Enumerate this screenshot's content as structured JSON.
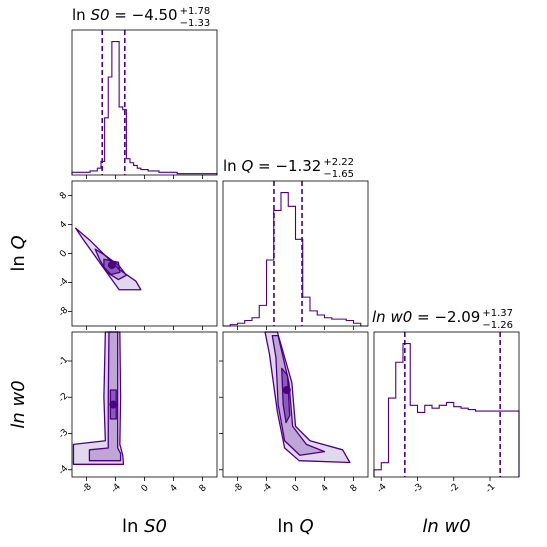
{
  "chart_data": {
    "type": "corner",
    "color": "#4b0082",
    "fill_color": "#6a3d9a",
    "parameters": [
      {
        "label": "ln S0",
        "title": {
          "prefix": "ln ",
          "var": "S0",
          "value": " = −4.50",
          "plus": "+1.78",
          "minus": "−1.33"
        },
        "range": [
          -10,
          10
        ],
        "ticks": [
          {
            "v": -8,
            "t": "-8"
          },
          {
            "v": -4,
            "t": "-4"
          },
          {
            "v": 0,
            "t": "0"
          },
          {
            "v": 4,
            "t": "4"
          },
          {
            "v": 8,
            "t": "8"
          }
        ],
        "median": -4.5,
        "quantiles": [
          -5.83,
          -2.72
        ],
        "hist_bins": [
          -10,
          -9.5,
          -9,
          -8.5,
          -8,
          -7.5,
          -7,
          -6.5,
          -6,
          -5.5,
          -5,
          -4.5,
          -4,
          -3.5,
          -3,
          -2.5,
          -2,
          -1.5,
          -1,
          -0.5,
          0,
          0.5,
          1,
          1.5,
          2,
          2.5,
          3,
          3.5,
          4,
          4.5,
          5,
          5.5,
          6,
          6.5,
          7,
          7.5,
          8,
          8.5,
          9,
          9.5,
          10
        ],
        "hist_counts": [
          0.02,
          0.02,
          0.02,
          0.02,
          0.02,
          0.03,
          0.03,
          0.05,
          0.1,
          0.42,
          0.72,
          0.98,
          0.98,
          0.5,
          0.48,
          0.12,
          0.09,
          0.07,
          0.05,
          0.04,
          0.04,
          0.03,
          0.03,
          0.03,
          0.02,
          0.02,
          0.02,
          0.02,
          0.02,
          0.01,
          0.01,
          0.01,
          0.01,
          0.01,
          0.01,
          0.01,
          0.01,
          0.01,
          0.01,
          0.01
        ]
      },
      {
        "label": "ln Q",
        "title": {
          "prefix": "ln ",
          "var": "Q",
          "value": " = −1.32",
          "plus": "+2.22",
          "minus": "−1.65"
        },
        "range": [
          -10,
          10
        ],
        "ticks": [
          {
            "v": -8,
            "t": "-8"
          },
          {
            "v": -4,
            "t": "-4"
          },
          {
            "v": 0,
            "t": "0"
          },
          {
            "v": 4,
            "t": "4"
          },
          {
            "v": 8,
            "t": "8"
          }
        ],
        "median": -1.32,
        "quantiles": [
          -2.97,
          0.9
        ],
        "hist_bins": [
          -10,
          -9,
          -8,
          -7,
          -6,
          -5,
          -4,
          -3,
          -2,
          -1,
          0,
          1,
          2,
          3,
          4,
          5,
          6,
          7,
          8,
          9,
          10
        ],
        "hist_counts": [
          0.0,
          0.01,
          0.02,
          0.04,
          0.06,
          0.15,
          0.48,
          0.84,
          0.97,
          0.87,
          0.63,
          0.21,
          0.11,
          0.08,
          0.06,
          0.05,
          0.05,
          0.04,
          0.02,
          0.0
        ]
      },
      {
        "label": "ln w0",
        "title": {
          "prefix": "",
          "var": "ln w0",
          "value": " = −2.09",
          "plus": "+1.37",
          "minus": "−1.26"
        },
        "range": [
          -4.2,
          -0.2
        ],
        "ticks": [
          {
            "v": -4,
            "t": "-4"
          },
          {
            "v": -3,
            "t": "-3"
          },
          {
            "v": -2,
            "t": "-2"
          },
          {
            "v": -1,
            "t": "-1"
          }
        ],
        "median": -2.09,
        "quantiles": [
          -3.35,
          -0.72
        ],
        "hist_bins": [
          -4.2,
          -4.0,
          -3.8,
          -3.6,
          -3.4,
          -3.2,
          -3.0,
          -2.8,
          -2.6,
          -2.4,
          -2.2,
          -2.0,
          -1.8,
          -1.6,
          -1.4,
          -1.2,
          -1.0,
          -0.8,
          -0.6,
          -0.4,
          -0.2
        ],
        "hist_counts": [
          0.05,
          0.1,
          0.55,
          0.8,
          0.93,
          0.5,
          0.45,
          0.5,
          0.48,
          0.5,
          0.52,
          0.49,
          0.48,
          0.47,
          0.46,
          0.46,
          0.46,
          0.46,
          0.46,
          0.46
        ]
      }
    ],
    "contours_2d": [
      {
        "x_param": 0,
        "y_param": 1,
        "core": [
          -4.5,
          -1.6
        ],
        "levels": [
          [
            [
              -9.5,
              3.5
            ],
            [
              -7.5,
              1.8
            ],
            [
              -3.5,
              -2.2
            ],
            [
              -1.2,
              -3.8
            ],
            [
              -0.5,
              -5.0
            ],
            [
              -3.5,
              -5.0
            ],
            [
              -6.0,
              -1.5
            ],
            [
              -8.5,
              2.0
            ]
          ],
          [
            [
              -6.8,
              0.6
            ],
            [
              -5.5,
              -0.2
            ],
            [
              -3.5,
              -1.7
            ],
            [
              -2.5,
              -3.0
            ],
            [
              -3.6,
              -3.6
            ],
            [
              -5.2,
              -2.6
            ],
            [
              -6.2,
              -0.8
            ]
          ],
          [
            [
              -5.6,
              -0.8
            ],
            [
              -3.6,
              -1.2
            ],
            [
              -3.4,
              -2.6
            ],
            [
              -4.6,
              -2.9
            ],
            [
              -5.6,
              -1.9
            ]
          ]
        ]
      },
      {
        "x_param": 0,
        "y_param": 2,
        "core": [
          -4.3,
          -2.2
        ],
        "levels": [
          [
            [
              -9.8,
              -3.3
            ],
            [
              -5.4,
              -3.2
            ],
            [
              -5.6,
              -2.0
            ],
            [
              -5.4,
              -0.2
            ],
            [
              -3.4,
              -0.2
            ],
            [
              -3.3,
              -2.0
            ],
            [
              -3.4,
              -3.3
            ],
            [
              -3.0,
              -3.6
            ],
            [
              -2.9,
              -3.85
            ],
            [
              -9.8,
              -3.85
            ]
          ],
          [
            [
              -7.6,
              -3.45
            ],
            [
              -5.0,
              -3.4
            ],
            [
              -5.0,
              -2.0
            ],
            [
              -4.9,
              -0.2
            ],
            [
              -3.7,
              -0.2
            ],
            [
              -3.7,
              -2.0
            ],
            [
              -3.7,
              -3.4
            ],
            [
              -3.3,
              -3.55
            ],
            [
              -3.3,
              -3.75
            ],
            [
              -7.6,
              -3.75
            ]
          ],
          [
            [
              -4.7,
              -2.6
            ],
            [
              -4.7,
              -1.8
            ],
            [
              -3.9,
              -1.8
            ],
            [
              -3.9,
              -2.6
            ]
          ]
        ]
      },
      {
        "x_param": 1,
        "y_param": 2,
        "core": [
          -1.2,
          -1.8
        ],
        "levels": [
          [
            [
              -4.2,
              -0.2
            ],
            [
              -2.5,
              -0.2
            ],
            [
              -0.5,
              -1.6
            ],
            [
              0.0,
              -2.8
            ],
            [
              2.0,
              -3.2
            ],
            [
              6.5,
              -3.45
            ],
            [
              7.5,
              -3.8
            ],
            [
              0.5,
              -3.75
            ],
            [
              -1.5,
              -3.4
            ],
            [
              -2.5,
              -2.4
            ],
            [
              -3.6,
              -0.8
            ]
          ],
          [
            [
              -3.2,
              -0.3
            ],
            [
              -2.4,
              -0.3
            ],
            [
              -0.9,
              -1.6
            ],
            [
              -0.4,
              -2.8
            ],
            [
              1.5,
              -3.3
            ],
            [
              4.0,
              -3.5
            ],
            [
              0.6,
              -3.6
            ],
            [
              -1.5,
              -3.2
            ],
            [
              -2.4,
              -2.2
            ],
            [
              -2.7,
              -0.9
            ]
          ],
          [
            [
              -1.9,
              -1.2
            ],
            [
              -1.1,
              -1.4
            ],
            [
              -0.8,
              -2.5
            ],
            [
              -1.3,
              -2.7
            ],
            [
              -1.7,
              -2.2
            ]
          ]
        ]
      }
    ]
  }
}
